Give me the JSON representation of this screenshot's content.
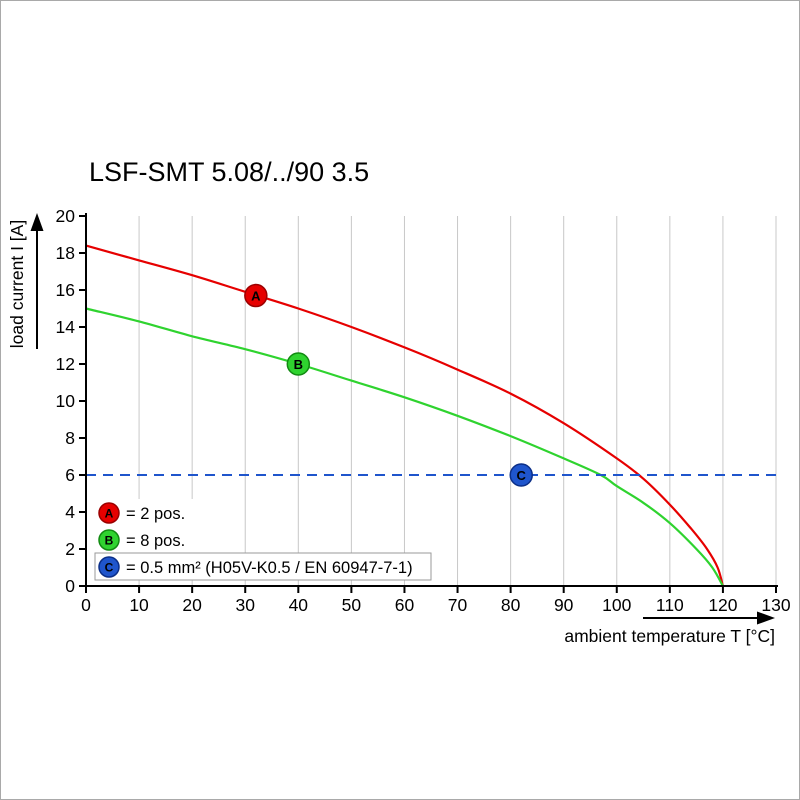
{
  "chart_data": {
    "type": "line",
    "title": "LSF-SMT 5.08/../90 3.5",
    "xlabel": "ambient temperature T [°C]",
    "ylabel": "load current I [A]",
    "xlim": [
      0,
      130
    ],
    "ylim": [
      0,
      20
    ],
    "xticks": [
      0,
      10,
      20,
      30,
      40,
      50,
      60,
      70,
      80,
      90,
      100,
      110,
      120,
      130
    ],
    "yticks": [
      0,
      2,
      4,
      6,
      8,
      10,
      12,
      14,
      16,
      18,
      20
    ],
    "grid": "vertical-gridlines-only",
    "grid_color": "#c8c8c8",
    "axis_color": "#000000",
    "legend_position": "bottom-left-inside",
    "series": [
      {
        "id": "A",
        "legend_label": "= 2 pos.",
        "color": "#e60000",
        "edge_color": "#9b0000",
        "line_style": "solid",
        "marker": {
          "x": 32,
          "y": 15.7,
          "letter": "A"
        },
        "points": [
          [
            0,
            18.4
          ],
          [
            10,
            17.6
          ],
          [
            20,
            16.8
          ],
          [
            30,
            15.9
          ],
          [
            40,
            15.0
          ],
          [
            50,
            14.0
          ],
          [
            60,
            12.9
          ],
          [
            70,
            11.7
          ],
          [
            80,
            10.4
          ],
          [
            90,
            8.8
          ],
          [
            100,
            6.9
          ],
          [
            105,
            5.8
          ],
          [
            110,
            4.4
          ],
          [
            114,
            3.1
          ],
          [
            117,
            2.0
          ],
          [
            119,
            1.0
          ],
          [
            120,
            0
          ]
        ]
      },
      {
        "id": "B",
        "legend_label": "= 8 pos.",
        "color": "#2fd32f",
        "edge_color": "#128a12",
        "line_style": "solid",
        "marker": {
          "x": 40,
          "y": 12.0,
          "letter": "B"
        },
        "points": [
          [
            0,
            15.0
          ],
          [
            10,
            14.3
          ],
          [
            20,
            13.5
          ],
          [
            30,
            12.8
          ],
          [
            40,
            12.0
          ],
          [
            50,
            11.1
          ],
          [
            60,
            10.2
          ],
          [
            70,
            9.2
          ],
          [
            80,
            8.1
          ],
          [
            90,
            6.9
          ],
          [
            97,
            6.0
          ],
          [
            100,
            5.4
          ],
          [
            105,
            4.5
          ],
          [
            110,
            3.4
          ],
          [
            115,
            2.0
          ],
          [
            118,
            1.0
          ],
          [
            120,
            0
          ]
        ]
      },
      {
        "id": "C",
        "legend_label": "= 0.5 mm² (H05V-K0.5 / EN 60947-7-1)",
        "color": "#1f55cc",
        "edge_color": "#0c2f88",
        "line_style": "dashed",
        "marker": {
          "x": 82,
          "y": 6.0,
          "letter": "C"
        },
        "points": [
          [
            0,
            6
          ],
          [
            130,
            6
          ]
        ]
      }
    ]
  }
}
